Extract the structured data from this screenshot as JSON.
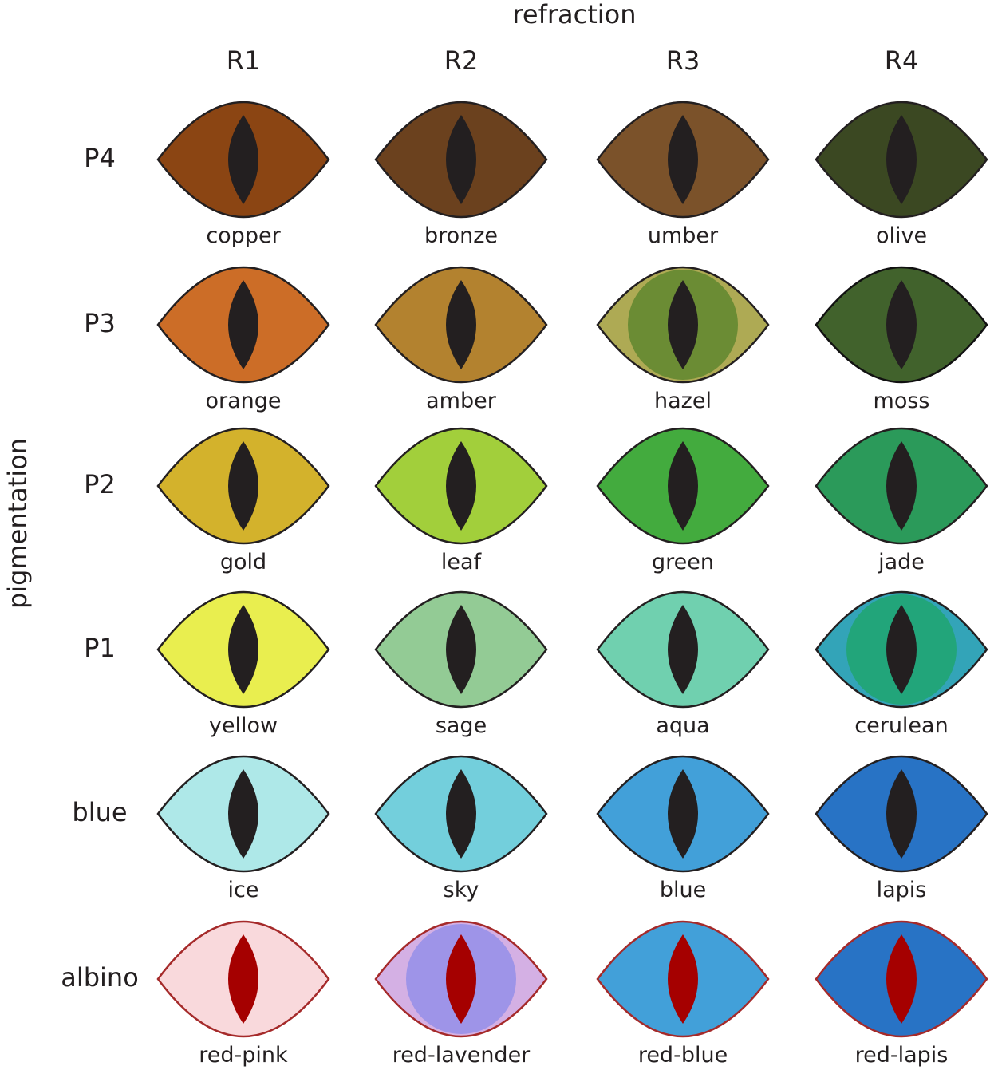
{
  "axes": {
    "refraction_title": "refraction",
    "pigmentation_title": "pigmentation"
  },
  "columns": [
    "R1",
    "R2",
    "R3",
    "R4"
  ],
  "rows": [
    {
      "label": "P4",
      "cells": [
        {
          "name": "copper",
          "iris": "#8b4513",
          "outline": "#231f20",
          "pupil": "#231f20"
        },
        {
          "name": "bronze",
          "iris": "#6b411e",
          "outline": "#231f20",
          "pupil": "#231f20"
        },
        {
          "name": "umber",
          "iris": "#7b522a",
          "outline": "#231f20",
          "pupil": "#231f20"
        },
        {
          "name": "olive",
          "iris": "#3b4822",
          "outline": "#231f20",
          "pupil": "#231f20"
        }
      ]
    },
    {
      "label": "P3",
      "cells": [
        {
          "name": "orange",
          "iris": "#cc6d27",
          "outline": "#231f20",
          "pupil": "#231f20"
        },
        {
          "name": "amber",
          "iris": "#b3822f",
          "outline": "#231f20",
          "pupil": "#231f20"
        },
        {
          "name": "hazel",
          "iris": "#aeaa54",
          "inner": "#6b8c34",
          "outline": "#231f20",
          "pupil": "#231f20"
        },
        {
          "name": "moss",
          "iris": "#41622c",
          "outline": "#111111",
          "pupil": "#231f20"
        }
      ]
    },
    {
      "label": "P2",
      "cells": [
        {
          "name": "gold",
          "iris": "#d3b22c",
          "outline": "#231f20",
          "pupil": "#231f20"
        },
        {
          "name": "leaf",
          "iris": "#a2cf3b",
          "outline": "#231f20",
          "pupil": "#231f20"
        },
        {
          "name": "green",
          "iris": "#43ab3e",
          "outline": "#231f20",
          "pupil": "#231f20"
        },
        {
          "name": "jade",
          "iris": "#2b9a5a",
          "outline": "#231f20",
          "pupil": "#231f20"
        }
      ]
    },
    {
      "label": "P1",
      "cells": [
        {
          "name": "yellow",
          "iris": "#e9ee4f",
          "outline": "#231f20",
          "pupil": "#231f20"
        },
        {
          "name": "sage",
          "iris": "#93cb95",
          "outline": "#231f20",
          "pupil": "#231f20"
        },
        {
          "name": "aqua",
          "iris": "#70d0af",
          "outline": "#231f20",
          "pupil": "#231f20"
        },
        {
          "name": "cerulean",
          "iris": "#33a4b8",
          "inner": "#22a57a",
          "outline": "#231f20",
          "pupil": "#231f20"
        }
      ]
    },
    {
      "label": "blue",
      "cells": [
        {
          "name": "ice",
          "iris": "#aee8e8",
          "outline": "#231f20",
          "pupil": "#231f20"
        },
        {
          "name": "sky",
          "iris": "#73cfdc",
          "outline": "#231f20",
          "pupil": "#231f20"
        },
        {
          "name": "blue",
          "iris": "#42a0d9",
          "outline": "#231f20",
          "pupil": "#231f20"
        },
        {
          "name": "lapis",
          "iris": "#2873c5",
          "outline": "#231f20",
          "pupil": "#231f20"
        }
      ]
    },
    {
      "label": "albino",
      "cells": [
        {
          "name": "red-pink",
          "iris": "#f9d9dc",
          "outline": "#a52a2a",
          "pupil": "#a50000"
        },
        {
          "name": "red-lavender",
          "iris": "#d4b0e4",
          "inner": "#9e94e8",
          "outline": "#a52a2a",
          "pupil": "#a50000"
        },
        {
          "name": "red-blue",
          "iris": "#42a0d9",
          "outline": "#a52a2a",
          "pupil": "#a50000"
        },
        {
          "name": "red-lapis",
          "iris": "#2873c5",
          "outline": "#a52a2a",
          "pupil": "#a50000"
        }
      ]
    }
  ]
}
